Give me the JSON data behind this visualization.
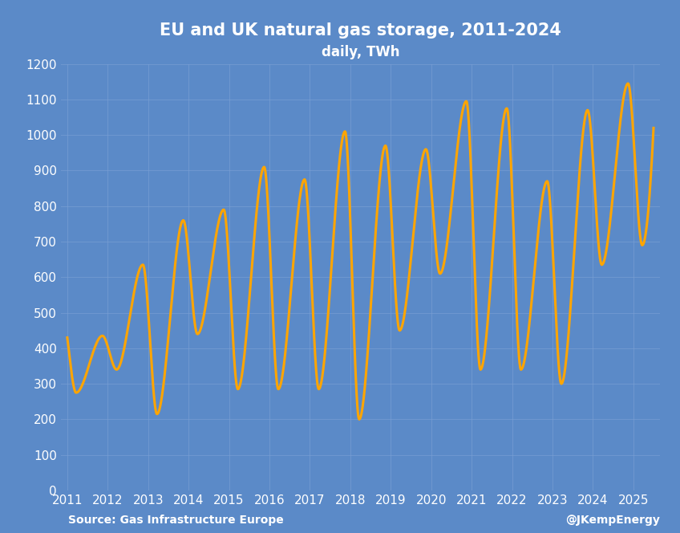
{
  "title": "EU and UK natural gas storage, 2011-2024",
  "subtitle": "daily, TWh",
  "source_left": "Source: Gas Infrastructure Europe",
  "source_right": "@JKempEnergy",
  "background_color": "#5b8ac8",
  "line_color": "#FFA500",
  "text_color": "white",
  "grid_color": "#7aa0d4",
  "ylim": [
    0,
    1200
  ],
  "yticks": [
    0,
    100,
    200,
    300,
    400,
    500,
    600,
    700,
    800,
    900,
    1000,
    1100,
    1200
  ],
  "xlim_start": 2010.85,
  "xlim_end": 2025.65,
  "xtick_years": [
    2011,
    2012,
    2013,
    2014,
    2015,
    2016,
    2017,
    2018,
    2019,
    2020,
    2021,
    2022,
    2023,
    2024,
    2025
  ],
  "keypoints": [
    [
      2011.0,
      430
    ],
    [
      2011.22,
      275
    ],
    [
      2011.87,
      435
    ],
    [
      2012.22,
      340
    ],
    [
      2012.87,
      635
    ],
    [
      2013.22,
      215
    ],
    [
      2013.87,
      760
    ],
    [
      2014.22,
      440
    ],
    [
      2014.87,
      790
    ],
    [
      2015.22,
      285
    ],
    [
      2015.87,
      910
    ],
    [
      2016.22,
      285
    ],
    [
      2016.87,
      875
    ],
    [
      2017.22,
      285
    ],
    [
      2017.87,
      1010
    ],
    [
      2018.22,
      200
    ],
    [
      2018.87,
      970
    ],
    [
      2019.22,
      450
    ],
    [
      2019.87,
      960
    ],
    [
      2020.22,
      610
    ],
    [
      2020.87,
      1095
    ],
    [
      2021.22,
      340
    ],
    [
      2021.87,
      1075
    ],
    [
      2022.22,
      340
    ],
    [
      2022.87,
      870
    ],
    [
      2023.22,
      300
    ],
    [
      2023.87,
      1070
    ],
    [
      2024.22,
      635
    ],
    [
      2024.87,
      1145
    ],
    [
      2025.22,
      690
    ],
    [
      2025.5,
      1020
    ]
  ],
  "line_width": 2.2,
  "title_fontsize": 15,
  "subtitle_fontsize": 12,
  "tick_fontsize": 11,
  "source_fontsize": 10
}
